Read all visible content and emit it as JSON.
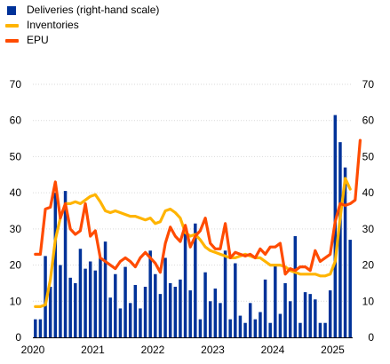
{
  "legend": [
    {
      "label": "Deliveries (right-hand scale)",
      "color": "#003299",
      "kind": "bar"
    },
    {
      "label": "Inventories",
      "color": "#FFB400",
      "kind": "line"
    },
    {
      "label": "EPU",
      "color": "#FF4B00",
      "kind": "line"
    }
  ],
  "chart_data": {
    "type": "bar+line",
    "ylim": [
      0,
      70
    ],
    "y2lim": [
      0,
      70
    ],
    "yticks": [
      "0",
      "10",
      "20",
      "30",
      "40",
      "50",
      "60",
      "70"
    ],
    "y2ticks": [
      "0",
      "10",
      "20",
      "30",
      "40",
      "50",
      "60",
      "70"
    ],
    "xticks": [
      "2020",
      "2021",
      "2022",
      "2023",
      "2024",
      "2025"
    ],
    "x_start": "2020-01",
    "grid": true,
    "legend_position": "top-left",
    "series": [
      {
        "name": "Deliveries (right-hand scale)",
        "type": "bar",
        "axis": "right",
        "color": "#003299",
        "values": [
          5,
          5,
          22.5,
          14,
          40,
          20,
          40.5,
          16.5,
          15,
          24.5,
          19,
          21,
          18.5,
          22,
          26.5,
          11,
          17.5,
          8,
          19.5,
          9.5,
          14.5,
          8,
          14,
          24,
          17.5,
          12,
          22,
          15,
          14,
          16,
          29.5,
          13,
          31.5,
          5,
          18,
          10,
          13.5,
          9.5,
          24,
          5,
          20.5,
          6,
          4,
          9.5,
          5,
          7,
          16,
          4,
          20,
          6.5,
          15,
          10,
          28,
          4,
          12.5,
          12,
          10.5,
          4,
          4,
          13,
          61.5,
          54,
          47,
          27
        ]
      },
      {
        "name": "Inventories",
        "type": "line",
        "axis": "left",
        "color": "#FFB400",
        "values": [
          8.5,
          8.5,
          9,
          16,
          27,
          33,
          37,
          37,
          37.5,
          37,
          38,
          39,
          39.5,
          37.5,
          35,
          34.5,
          35,
          34.5,
          34,
          33.5,
          33.5,
          33,
          32.5,
          33,
          31.5,
          32,
          35,
          35.5,
          34.5,
          33,
          29,
          28,
          28.5,
          27,
          25,
          24,
          23.5,
          23,
          22.5,
          22,
          22,
          22.5,
          23,
          22.5,
          22,
          22,
          21,
          20,
          20,
          20,
          19.5,
          18.5,
          18,
          17.5,
          17.5,
          17.5,
          17.5,
          17,
          17,
          17.5,
          21,
          33,
          44,
          41
        ]
      },
      {
        "name": "EPU",
        "type": "line",
        "axis": "left",
        "color": "#FF4B00",
        "values": [
          23,
          23,
          35.5,
          36,
          43,
          33,
          37,
          30,
          28.5,
          29.5,
          37,
          28,
          29.5,
          22,
          21,
          20,
          19,
          21,
          22,
          21,
          19.5,
          22,
          23.5,
          22,
          20.5,
          18,
          26,
          30.5,
          28,
          26.5,
          31,
          25,
          28,
          29.5,
          33,
          26,
          24.5,
          24.5,
          31.5,
          22,
          23.5,
          23,
          22.5,
          23,
          22,
          24.5,
          23,
          25,
          25,
          26,
          17.5,
          19,
          18.5,
          19.5,
          19.5,
          18.5,
          24,
          21,
          22,
          23,
          32,
          37,
          36.5,
          37,
          38,
          54.5
        ]
      }
    ]
  }
}
